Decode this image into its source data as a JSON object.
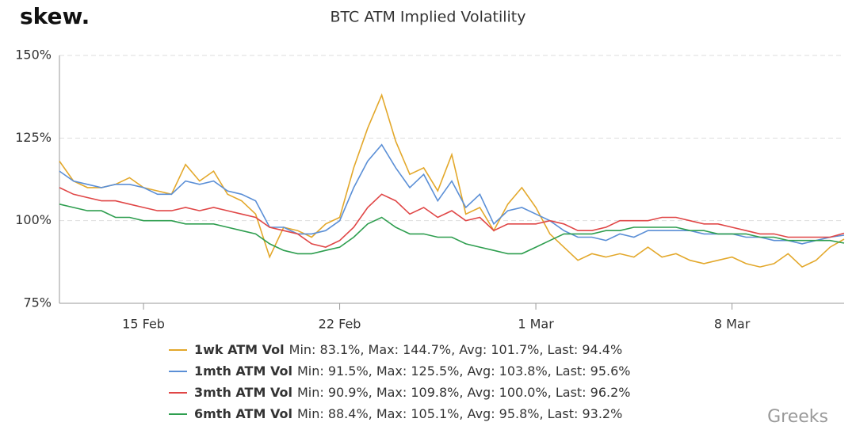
{
  "logo": "skew.",
  "watermark": "Greeks",
  "chart_data": {
    "type": "line",
    "title": "BTC ATM Implied Volatility",
    "categories": [
      null,
      null,
      null,
      null,
      null,
      null,
      "15 Feb",
      null,
      null,
      null,
      null,
      null,
      null,
      null,
      null,
      null,
      null,
      null,
      null,
      null,
      "22 Feb",
      null,
      null,
      null,
      null,
      null,
      null,
      null,
      null,
      null,
      null,
      null,
      null,
      null,
      "1 Mar",
      null,
      null,
      null,
      null,
      null,
      null,
      null,
      null,
      null,
      null,
      null,
      null,
      null,
      "8 Mar",
      null,
      null,
      null,
      null,
      null,
      null,
      null,
      null
    ],
    "ylim": [
      75,
      150
    ],
    "yticks": [
      {
        "value": 75,
        "label": "75%"
      },
      {
        "value": 100,
        "label": "100%"
      },
      {
        "value": 125,
        "label": "125%"
      },
      {
        "value": 150,
        "label": "150%"
      }
    ],
    "grid": true,
    "series": [
      {
        "name": "1wk ATM Vol",
        "legend_text": "Min: 83.1%, Max: 144.7%, Avg: 101.7%, Last: 94.4%",
        "color": "#e3a82b",
        "values": [
          118,
          112,
          110,
          110,
          111,
          113,
          110,
          109,
          108,
          117,
          112,
          115,
          108,
          106,
          102,
          89,
          98,
          97,
          95,
          99,
          101,
          116,
          128,
          138,
          124,
          114,
          116,
          109,
          120,
          102,
          104,
          97,
          105,
          110,
          104,
          96,
          92,
          88,
          90,
          89,
          90,
          89,
          92,
          89,
          90,
          88,
          87,
          88,
          89,
          87,
          86,
          87,
          90,
          86,
          88,
          92,
          94.4
        ]
      },
      {
        "name": "1mth ATM Vol",
        "legend_text": "Min: 91.5%, Max: 125.5%, Avg: 103.8%, Last: 95.6%",
        "color": "#5b8fd6",
        "values": [
          115,
          112,
          111,
          110,
          111,
          111,
          110,
          108,
          108,
          112,
          111,
          112,
          109,
          108,
          106,
          98,
          98,
          96,
          96,
          97,
          100,
          110,
          118,
          123,
          116,
          110,
          114,
          106,
          112,
          104,
          108,
          99,
          103,
          104,
          102,
          100,
          97,
          95,
          95,
          94,
          96,
          95,
          97,
          97,
          97,
          97,
          96,
          96,
          96,
          95,
          95,
          94,
          94,
          93,
          94,
          95,
          95.6
        ]
      },
      {
        "name": "3mth ATM Vol",
        "legend_text": "Min: 90.9%, Max: 109.8%, Avg: 100.0%, Last: 96.2%",
        "color": "#e04646",
        "values": [
          110,
          108,
          107,
          106,
          106,
          105,
          104,
          103,
          103,
          104,
          103,
          104,
          103,
          102,
          101,
          98,
          97,
          96,
          93,
          92,
          94,
          98,
          104,
          108,
          106,
          102,
          104,
          101,
          103,
          100,
          101,
          97,
          99,
          99,
          99,
          100,
          99,
          97,
          97,
          98,
          100,
          100,
          100,
          101,
          101,
          100,
          99,
          99,
          98,
          97,
          96,
          96,
          95,
          95,
          95,
          95,
          96.2
        ]
      },
      {
        "name": "6mth ATM Vol",
        "legend_text": "Min: 88.4%, Max: 105.1%, Avg: 95.8%, Last: 93.2%",
        "color": "#2e9e4f",
        "values": [
          105,
          104,
          103,
          103,
          101,
          101,
          100,
          100,
          100,
          99,
          99,
          99,
          98,
          97,
          96,
          93,
          91,
          90,
          90,
          91,
          92,
          95,
          99,
          101,
          98,
          96,
          96,
          95,
          95,
          93,
          92,
          91,
          90,
          90,
          92,
          94,
          96,
          96,
          96,
          97,
          97,
          98,
          98,
          98,
          98,
          97,
          97,
          96,
          96,
          96,
          95,
          95,
          94,
          94,
          94,
          94,
          93.2
        ]
      }
    ]
  }
}
